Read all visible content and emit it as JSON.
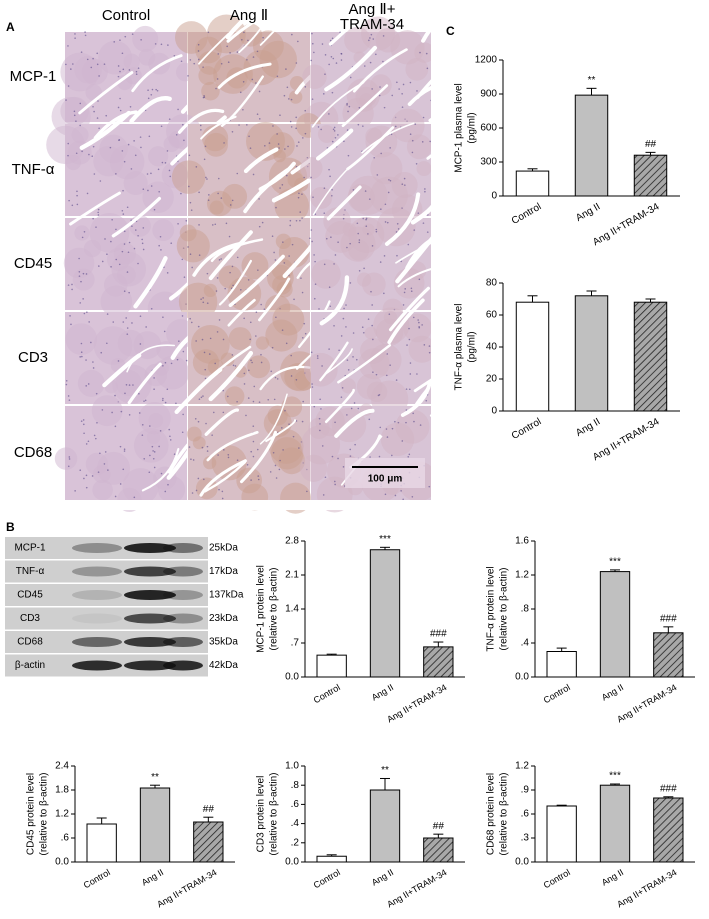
{
  "panel_labels": {
    "a": "A",
    "b": "B",
    "c": "C"
  },
  "histology": {
    "columns": [
      [
        "Control"
      ],
      [
        "Ang Ⅱ"
      ],
      [
        "Ang Ⅱ+",
        "TRAM-34"
      ]
    ],
    "rows": [
      "MCP-1",
      "TNF-α",
      "CD45",
      "CD3",
      "CD68"
    ],
    "scale_bar": "100 μm"
  },
  "blot": {
    "proteins": [
      "MCP-1",
      "TNF-α",
      "CD45",
      "CD3",
      "CD68",
      "β-actin"
    ],
    "sizes": [
      "25kDa",
      "17kDa",
      "137kDa",
      "23kDa",
      "35kDa",
      "42kDa"
    ]
  },
  "chart_data": [
    {
      "type": "bar",
      "ylabel": [
        "MCP-1 plasma level",
        "(pg/ml)"
      ],
      "categories": [
        "Control",
        "Ang II",
        "Ang II+TRAM-34"
      ],
      "values": [
        220,
        890,
        360
      ],
      "errors": [
        20,
        60,
        25
      ],
      "annotations": [
        null,
        "**",
        "##"
      ],
      "colors": [
        "#ffffff",
        "#c0c0c0",
        "#a8a8a8"
      ],
      "hatch": [
        false,
        false,
        true
      ],
      "ylim": [
        0,
        1200
      ],
      "yticks": [
        0,
        300,
        600,
        900,
        1200
      ]
    },
    {
      "type": "bar",
      "ylabel": [
        "TNF-α plasma level",
        "(pg/ml)"
      ],
      "categories": [
        "Control",
        "Ang II",
        "Ang II+TRAM-34"
      ],
      "values": [
        68,
        72,
        68
      ],
      "errors": [
        4,
        3,
        2
      ],
      "colors": [
        "#ffffff",
        "#c0c0c0",
        "#a8a8a8"
      ],
      "hatch": [
        false,
        false,
        true
      ],
      "ylim": [
        0,
        80
      ],
      "yticks": [
        0,
        20,
        40,
        60,
        80
      ]
    },
    {
      "type": "bar",
      "ylabel": [
        "MCP-1 protein level",
        "(relative to β-actin)"
      ],
      "categories": [
        "Control",
        "Ang II",
        "Ang II+TRAM-34"
      ],
      "values": [
        0.45,
        2.62,
        0.62
      ],
      "errors": [
        0.02,
        0.05,
        0.1
      ],
      "annotations": [
        null,
        "***",
        "###"
      ],
      "colors": [
        "#ffffff",
        "#c0c0c0",
        "#a8a8a8"
      ],
      "hatch": [
        false,
        false,
        true
      ],
      "ylim": [
        0,
        2.8
      ],
      "yticks": [
        {
          "value": 0,
          "label": "0.0"
        },
        {
          "value": 0.7,
          "label": ".7"
        },
        1.4,
        2.1,
        2.8
      ]
    },
    {
      "type": "bar",
      "ylabel": [
        "TNF-α protein level",
        "(relative to β-actin)"
      ],
      "categories": [
        "Control",
        "Ang II",
        "Ang II+TRAM-34"
      ],
      "values": [
        0.3,
        1.24,
        0.52
      ],
      "errors": [
        0.04,
        0.02,
        0.07
      ],
      "annotations": [
        null,
        "***",
        "###"
      ],
      "colors": [
        "#ffffff",
        "#c0c0c0",
        "#a8a8a8"
      ],
      "hatch": [
        false,
        false,
        true
      ],
      "ylim": [
        0,
        1.6
      ],
      "yticks": [
        {
          "value": 0,
          "label": "0.0"
        },
        {
          "value": 0.4,
          "label": ".4"
        },
        {
          "value": 0.8,
          "label": ".8"
        },
        1.2,
        1.6
      ]
    },
    {
      "type": "bar",
      "ylabel": [
        "CD45 protein level",
        "(relative to β-actin)"
      ],
      "categories": [
        "Control",
        "Ang II",
        "Ang II+TRAM-34"
      ],
      "values": [
        0.95,
        1.85,
        1.0
      ],
      "errors": [
        0.15,
        0.07,
        0.12
      ],
      "annotations": [
        null,
        "**",
        "##"
      ],
      "colors": [
        "#ffffff",
        "#c0c0c0",
        "#a8a8a8"
      ],
      "hatch": [
        false,
        false,
        true
      ],
      "ylim": [
        0,
        2.4
      ],
      "yticks": [
        {
          "value": 0,
          "label": "0.0"
        },
        {
          "value": 0.6,
          "label": ".6"
        },
        1.2,
        1.8,
        2.4
      ]
    },
    {
      "type": "bar",
      "ylabel": [
        "CD3 protein level",
        "(relative to β-actin)"
      ],
      "categories": [
        "Control",
        "Ang II",
        "Ang II+TRAM-34"
      ],
      "values": [
        0.06,
        0.75,
        0.25
      ],
      "errors": [
        0.015,
        0.12,
        0.04
      ],
      "annotations": [
        null,
        "**",
        "##"
      ],
      "colors": [
        "#ffffff",
        "#c0c0c0",
        "#a8a8a8"
      ],
      "hatch": [
        false,
        false,
        true
      ],
      "ylim": [
        0,
        1.0
      ],
      "yticks": [
        {
          "value": 0,
          "label": "0.0"
        },
        {
          "value": 0.2,
          "label": ".2"
        },
        {
          "value": 0.4,
          "label": ".4"
        },
        {
          "value": 0.6,
          "label": ".6"
        },
        {
          "value": 0.8,
          "label": ".8"
        },
        {
          "value": 1.0,
          "label": "1.0"
        }
      ]
    },
    {
      "type": "bar",
      "ylabel": [
        "CD68 protein level",
        "(relative to β-actin)"
      ],
      "categories": [
        "Control",
        "Ang II",
        "Ang II+TRAM-34"
      ],
      "values": [
        0.7,
        0.96,
        0.8
      ],
      "errors": [
        0.01,
        0.015,
        0.015
      ],
      "annotations": [
        null,
        "***",
        "###"
      ],
      "colors": [
        "#ffffff",
        "#c0c0c0",
        "#a8a8a8"
      ],
      "hatch": [
        false,
        false,
        true
      ],
      "ylim": [
        0,
        1.2
      ],
      "yticks": [
        {
          "value": 0,
          "label": "0.0"
        },
        {
          "value": 0.3,
          "label": ".3"
        },
        {
          "value": 0.6,
          "label": ".6"
        },
        {
          "value": 0.9,
          "label": ".9"
        },
        1.2
      ]
    }
  ]
}
